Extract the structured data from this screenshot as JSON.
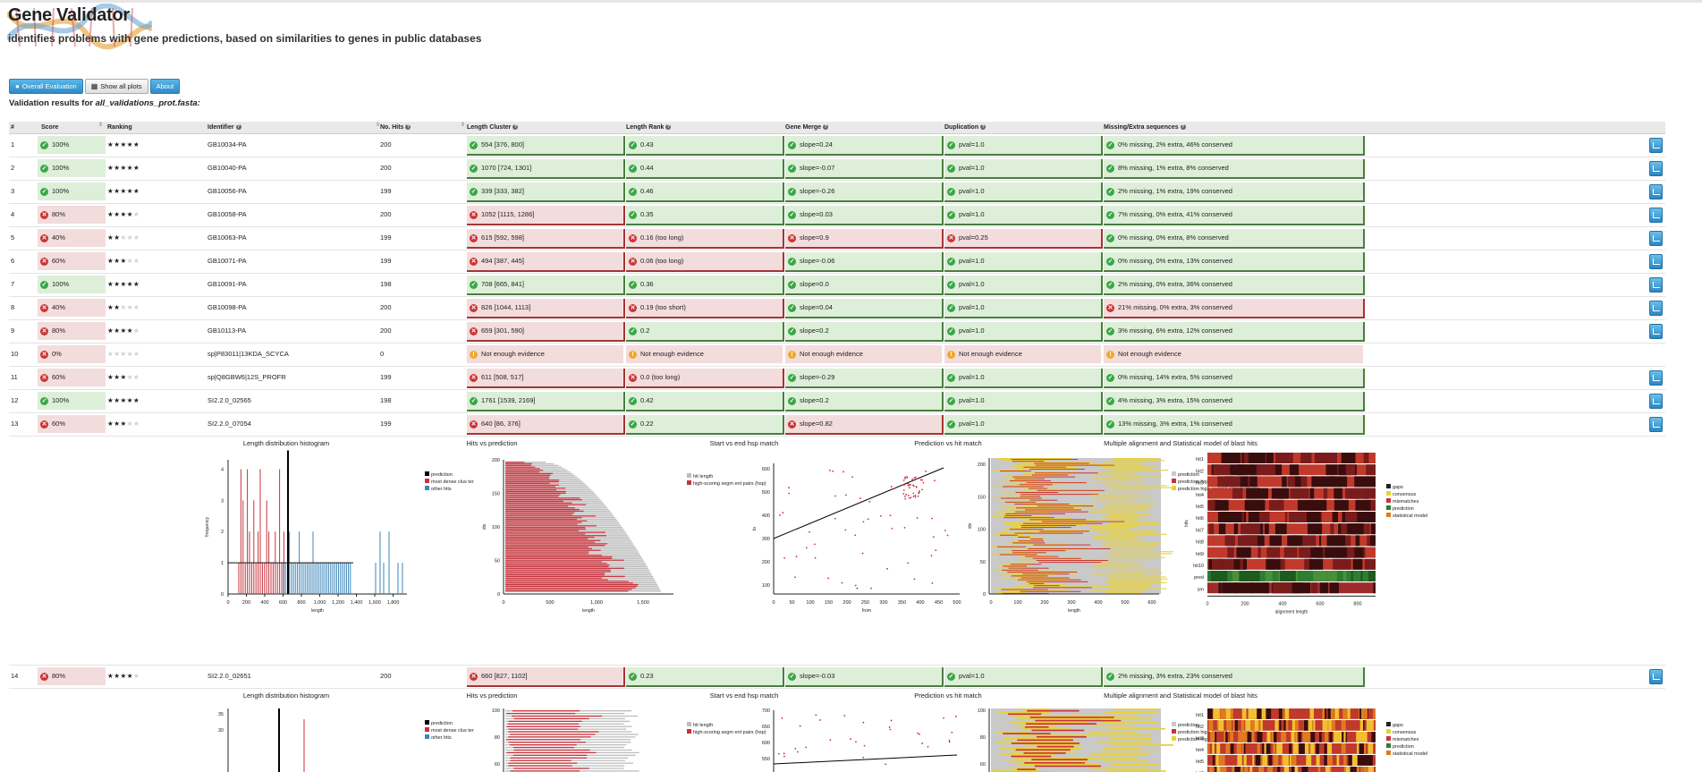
{
  "header": {
    "title": "Gene Validator",
    "subtitle": "identifies problems with gene predictions, based on similarities to genes in public databases"
  },
  "toolbar": {
    "overall": "Overall Evaluation",
    "showall": "Show all plots",
    "about": "About"
  },
  "results": {
    "prefix": "Validation results for ",
    "file": "all_validations_prot.fasta:"
  },
  "columns": [
    "#",
    "Score",
    "Ranking",
    "Identifier",
    "No. Hits",
    "Length Cluster",
    "Length Rank",
    "Gene Merge",
    "Duplication",
    "Missing/Extra sequences"
  ],
  "rows": [
    {
      "n": "1",
      "score": "100%",
      "stars": 5,
      "id": "GB10034-PA",
      "hits": "200",
      "lc": "554 [376, 800]",
      "lr": "0.43",
      "gm": "slope=0.24",
      "dup": "pval=1.0",
      "me": "0% missing, 2% extra, 46% conserved",
      "st": [
        "g",
        "g",
        "g",
        "g",
        "g"
      ],
      "ok": true
    },
    {
      "n": "2",
      "score": "100%",
      "stars": 5,
      "id": "GB10040-PA",
      "hits": "200",
      "lc": "1070 [724, 1301]",
      "lr": "0.44",
      "gm": "slope=-0.07",
      "dup": "pval=1.0",
      "me": "8% missing, 1% extra, 8% conserved",
      "st": [
        "g",
        "g",
        "g",
        "g",
        "g"
      ],
      "ok": true
    },
    {
      "n": "3",
      "score": "100%",
      "stars": 5,
      "id": "GB10056-PA",
      "hits": "199",
      "lc": "339 [333, 382]",
      "lr": "0.46",
      "gm": "slope=-0.26",
      "dup": "pval=1.0",
      "me": "2% missing, 1% extra, 19% conserved",
      "st": [
        "g",
        "g",
        "g",
        "g",
        "g"
      ],
      "ok": true
    },
    {
      "n": "4",
      "score": "80%",
      "stars": 4,
      "id": "GB10058-PA",
      "hits": "200",
      "lc": "1052 [1115, 1286]",
      "lr": "0.35",
      "gm": "slope=0.03",
      "dup": "pval=1.0",
      "me": "7% missing, 0% extra, 41% conserved",
      "st": [
        "r",
        "g",
        "g",
        "g",
        "g"
      ],
      "ok": false
    },
    {
      "n": "5",
      "score": "40%",
      "stars": 2,
      "id": "GB10063-PA",
      "hits": "199",
      "lc": "615 [592, 598]",
      "lr": "0.16 (too long)",
      "gm": "slope=0.9",
      "dup": "pval=0.25",
      "me": "0% missing, 0% extra, 8% conserved",
      "st": [
        "r",
        "r",
        "r",
        "r",
        "g"
      ],
      "ok": false
    },
    {
      "n": "6",
      "score": "60%",
      "stars": 3,
      "id": "GB10071-PA",
      "hits": "199",
      "lc": "494 [387, 445]",
      "lr": "0.06 (too long)",
      "gm": "slope=-0.06",
      "dup": "pval=1.0",
      "me": "0% missing, 0% extra, 13% conserved",
      "st": [
        "r",
        "r",
        "g",
        "g",
        "g"
      ],
      "ok": false
    },
    {
      "n": "7",
      "score": "100%",
      "stars": 5,
      "id": "GB10091-PA",
      "hits": "198",
      "lc": "708 [665, 841]",
      "lr": "0.36",
      "gm": "slope=0.0",
      "dup": "pval=1.0",
      "me": "2% missing, 0% extra, 36% conserved",
      "st": [
        "g",
        "g",
        "g",
        "g",
        "g"
      ],
      "ok": true
    },
    {
      "n": "8",
      "score": "40%",
      "stars": 2,
      "id": "GB10098-PA",
      "hits": "200",
      "lc": "826 [1044, 1113]",
      "lr": "0.19 (too short)",
      "gm": "slope=0.04",
      "dup": "pval=1.0",
      "me": "21% missing, 0% extra, 3% conserved",
      "st": [
        "r",
        "r",
        "g",
        "g",
        "r"
      ],
      "ok": false
    },
    {
      "n": "9",
      "score": "80%",
      "stars": 4,
      "id": "GB10113-PA",
      "hits": "200",
      "lc": "659 [301, 590]",
      "lr": "0.2",
      "gm": "slope=0.2",
      "dup": "pval=1.0",
      "me": "3% missing, 6% extra, 12% conserved",
      "st": [
        "r",
        "g",
        "g",
        "g",
        "g"
      ],
      "ok": false
    },
    {
      "n": "10",
      "score": "0%",
      "stars": 0,
      "id": "sp|P83011|13KDA_SCYCA",
      "hits": "0",
      "lc": "Not enough evidence",
      "lr": "Not enough evidence",
      "gm": "Not enough evidence",
      "dup": "Not enough evidence",
      "me": "Not enough evidence",
      "st": [
        "n",
        "n",
        "n",
        "n",
        "n"
      ],
      "ok": false,
      "ne": true
    },
    {
      "n": "11",
      "score": "60%",
      "stars": 3,
      "id": "sp|Q8GBW6|12S_PROFR",
      "hits": "199",
      "lc": "611 [508, 517]",
      "lr": "0.0 (too long)",
      "gm": "slope=-0.29",
      "dup": "pval=1.0",
      "me": "0% missing, 14% extra, 5% conserved",
      "st": [
        "r",
        "r",
        "g",
        "g",
        "g"
      ],
      "ok": false
    },
    {
      "n": "12",
      "score": "100%",
      "stars": 5,
      "id": "SI2.2.0_02565",
      "hits": "198",
      "lc": "1761 [1539, 2169]",
      "lr": "0.42",
      "gm": "slope=0.2",
      "dup": "pval=1.0",
      "me": "4% missing, 3% extra, 15% conserved",
      "st": [
        "g",
        "g",
        "g",
        "g",
        "g"
      ],
      "ok": true
    },
    {
      "n": "13",
      "score": "60%",
      "stars": 3,
      "id": "SI2.2.0_07054",
      "hits": "199",
      "lc": "640 [86, 376]",
      "lr": "0.22",
      "gm": "slope=0.82",
      "dup": "pval=1.0",
      "me": "13% missing, 3% extra, 1% conserved",
      "st": [
        "r",
        "g",
        "r",
        "g",
        "g"
      ],
      "ok": false
    }
  ],
  "row14": {
    "n": "14",
    "score": "80%",
    "stars": 4,
    "id": "SI2.2.0_02651",
    "hits": "200",
    "lc": "660 [827, 1102]",
    "lr": "0.23",
    "gm": "slope=-0.03",
    "dup": "pval=1.0",
    "me": "2% missing, 3% extra, 23% conserved",
    "st": [
      "r",
      "g",
      "g",
      "g",
      "g"
    ],
    "ok": false
  },
  "plots": {
    "titles": [
      "Length distribution histogram",
      "Hits vs prediction",
      "Start vs end hsp match",
      "Prediction vs hit match",
      "Multiple alignment and Statistical model of blast hits"
    ],
    "hist_legend": [
      "prediction",
      "most dense clus ter",
      "other hits"
    ],
    "hist_xlabel": "length",
    "hist_ylabel": "frequency",
    "hvp_legend": [
      "hit length",
      "high-scoring segm ent pairs (hsp)"
    ],
    "hvp_xlabel": "length",
    "hvp_ylabel": "idx",
    "sve_xlabel": "from",
    "sve_ylabel": "to",
    "pvh_legend": [
      "prediction",
      "prediction high-scoring alignment seq",
      "prediction high-scoring alignment seq"
    ],
    "pvh_xlabel": "length",
    "pvh_ylabel": "idx",
    "ma_legend": [
      "gaps",
      "consensus",
      "mismatches",
      "prediction",
      "statistical model"
    ],
    "ma_xlabel": "alignment length",
    "ma_ylabel": "hits",
    "ma_rows": [
      "hit1",
      "hit2",
      "hit3",
      "hit4",
      "hit5",
      "hit6",
      "hit7",
      "hit8",
      "hit9",
      "hit10",
      "pred",
      "sm"
    ],
    "hist_x": [
      "0",
      "200",
      "400",
      "600",
      "800",
      "1,000",
      "1,200",
      "1,400",
      "1,600",
      "1,800"
    ],
    "hist_y": [
      "0",
      "1",
      "2",
      "3",
      "4"
    ],
    "hvp_x": [
      "0",
      "500",
      "1,000",
      "1,500"
    ],
    "hvp_y": [
      "0",
      "50",
      "100",
      "150",
      "200"
    ],
    "sve_x": [
      "0",
      "50",
      "100",
      "150",
      "200",
      "250",
      "300",
      "350",
      "400",
      "450",
      "500"
    ],
    "sve_y": [
      "100",
      "200",
      "300",
      "400",
      "500",
      "600"
    ],
    "pvh_x": [
      "0",
      "100",
      "200",
      "300",
      "400",
      "500",
      "600"
    ],
    "pvh_y": [
      "0",
      "50",
      "100",
      "150",
      "200"
    ],
    "ma_x": [
      "0",
      "200",
      "400",
      "600",
      "800"
    ],
    "hist2_y": [
      "35",
      "30"
    ],
    "hvp2_y": [
      "100",
      "80",
      "60"
    ],
    "sve2_y": [
      "700",
      "650",
      "600",
      "550",
      "500"
    ],
    "pvh2_y": [
      "100",
      "80",
      "60"
    ],
    "ma2_rows": [
      "hit1",
      "hit2",
      "hit3",
      "hit4",
      "hit5",
      "hit6"
    ],
    "ma2_legend": [
      "gaps",
      "consensus",
      "mismatches",
      "prediction",
      "statistical model"
    ]
  },
  "colors": {
    "green": "#3aa746",
    "red": "#cc3333",
    "accent": "#2d8ac7",
    "bar_red": "#c8323b",
    "bar_blue": "#3b86b8"
  }
}
